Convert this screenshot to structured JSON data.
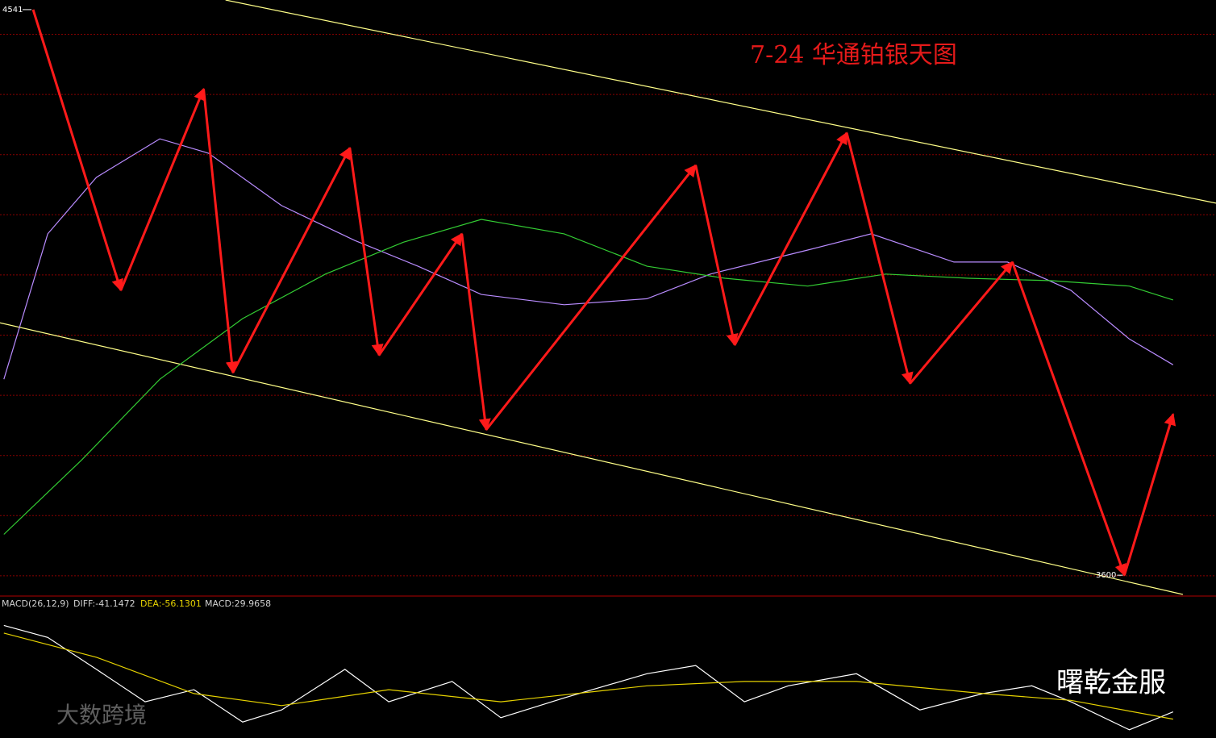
{
  "chart_data": [
    {
      "type": "line",
      "title": "7-24 华通铂银天图",
      "xlim": [
        -0.8,
        248.8
      ],
      "ylim": [
        3568,
        4557
      ],
      "series": [
        {
          "color": "#ffff88",
          "x": [
            45.5,
            248.8
          ],
          "values": [
            4557,
            4219
          ]
        },
        {
          "color": "#ffff88",
          "x": [
            -0.8,
            242
          ],
          "values": [
            4020,
            3568
          ]
        },
        {
          "color": "#b98cff",
          "x": [
            0,
            9,
            19,
            32,
            42,
            57,
            72,
            85,
            98,
            115,
            132,
            145,
            165,
            178,
            195,
            206,
            219,
            231,
            240
          ],
          "values": [
            3926,
            4168,
            4262,
            4326,
            4302,
            4215,
            4157,
            4114,
            4067,
            4050,
            4060,
            4101,
            4141,
            4168,
            4121,
            4121,
            4074,
            3993,
            3950
          ]
        },
        {
          "color": "#33cc33",
          "x": [
            0,
            16,
            32,
            49,
            66,
            82,
            98,
            115,
            132,
            148,
            165,
            181,
            198,
            215,
            231,
            240
          ],
          "values": [
            3668,
            3792,
            3926,
            4027,
            4101,
            4154,
            4192,
            4168,
            4114,
            4094,
            4081,
            4101,
            4094,
            4090,
            4081,
            4058
          ]
        },
        {
          "color": "#ff1a1a",
          "arrows": true,
          "x": [
            6,
            24,
            41,
            47,
            71,
            77,
            94,
            99,
            142,
            150,
            173,
            186,
            207,
            230,
            240
          ],
          "values": [
            4541,
            4074,
            4409,
            3937,
            4311,
            3966,
            4168,
            3842,
            4282,
            3983,
            4336,
            3919,
            4121,
            3600,
            3868
          ]
        }
      ],
      "annotations": [
        {
          "x": 6,
          "value": 4541
        },
        {
          "x": 230,
          "value": 3600
        }
      ]
    },
    {
      "type": "line",
      "title": "MACD(26,12,9)",
      "readouts": [
        "DIFF:-41.1472",
        "DEA:-56.1301",
        "MACD:29.9658"
      ],
      "xlim": [
        -0.8,
        248.8
      ],
      "ylim": [
        -95,
        197
      ],
      "series": [
        {
          "color": "#ffffff",
          "x": [
            0,
            9,
            19,
            29,
            39,
            49,
            57,
            70,
            79,
            92,
            102,
            115,
            132,
            142,
            152,
            161,
            175,
            188,
            201,
            211,
            219,
            231,
            240
          ],
          "values": [
            138,
            113,
            47,
            -20,
            5,
            -62,
            -37,
            47,
            -20,
            22,
            -53,
            -12,
            38,
            55,
            -20,
            13,
            38,
            -37,
            -3,
            13,
            -20,
            -78,
            -41
          ]
        },
        {
          "color": "#e6d200",
          "x": [
            0,
            19,
            39,
            57,
            79,
            102,
            132,
            152,
            175,
            201,
            219,
            240
          ],
          "values": [
            122,
            72,
            -3,
            -28,
            5,
            -20,
            13,
            22,
            22,
            -3,
            -17,
            -56
          ]
        }
      ]
    },
    {
      "type": "text",
      "watermarks": [
        "曙乾金服",
        "大数跨境"
      ]
    }
  ]
}
